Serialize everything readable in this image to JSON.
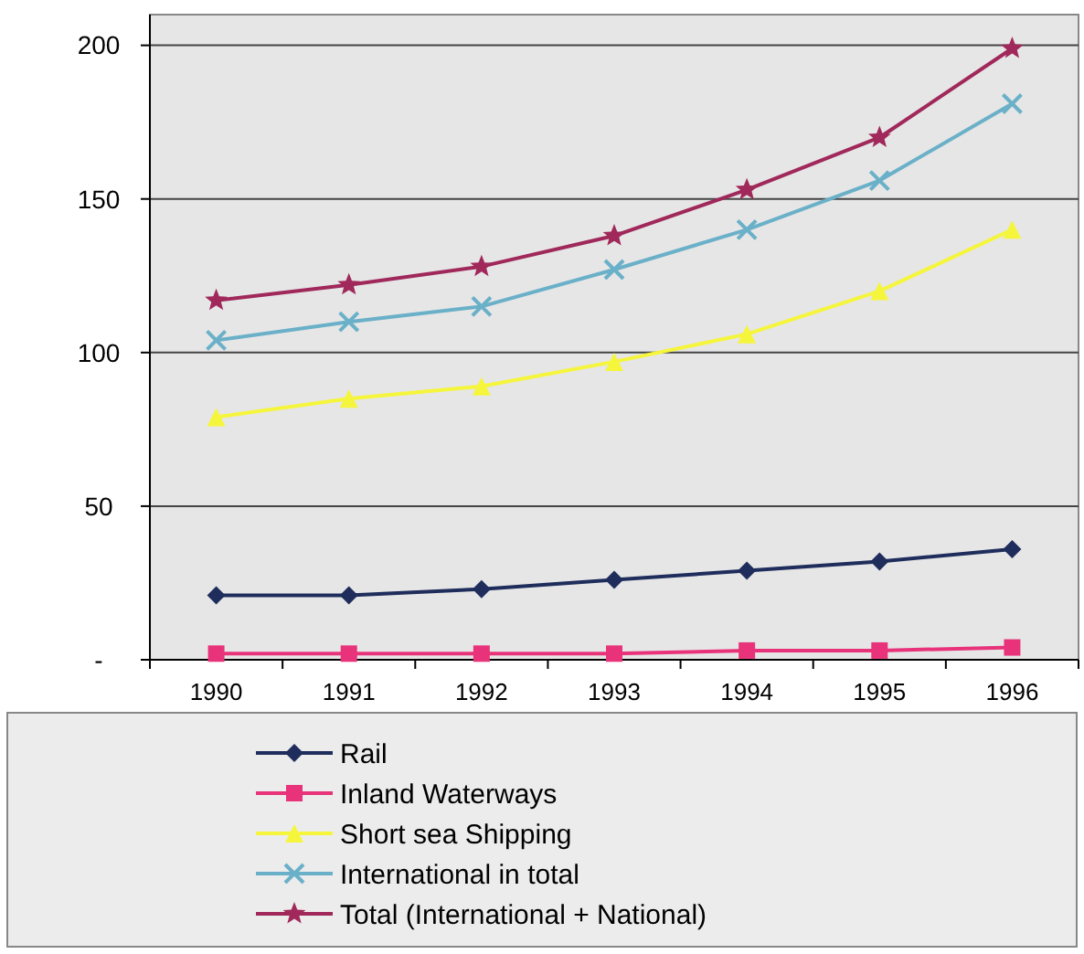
{
  "chart_data": {
    "type": "line",
    "categories": [
      "1990",
      "1991",
      "1992",
      "1993",
      "1994",
      "1995",
      "1996"
    ],
    "series": [
      {
        "name": "Rail",
        "color": "#1f2d5c",
        "marker": "diamond",
        "values": [
          21,
          21,
          23,
          26,
          29,
          32,
          36
        ]
      },
      {
        "name": "Inland Waterways",
        "color": "#e8337a",
        "marker": "square",
        "values": [
          2,
          2,
          2,
          2,
          3,
          3,
          4
        ]
      },
      {
        "name": "Short sea Shipping",
        "color": "#f5f53c",
        "marker": "triangle",
        "values": [
          79,
          85,
          89,
          97,
          106,
          120,
          140
        ]
      },
      {
        "name": "International in total",
        "color": "#6ab0c8",
        "marker": "cross",
        "values": [
          104,
          110,
          115,
          127,
          140,
          156,
          181
        ]
      },
      {
        "name": "Total (International + National)",
        "color": "#a0285a",
        "marker": "star",
        "values": [
          117,
          122,
          128,
          138,
          153,
          170,
          199
        ]
      }
    ],
    "ylim": [
      0,
      210
    ],
    "yticks": [
      {
        "value": 0,
        "label": "-"
      },
      50,
      100,
      150,
      200
    ],
    "grid": "y",
    "legend": "bottom"
  }
}
